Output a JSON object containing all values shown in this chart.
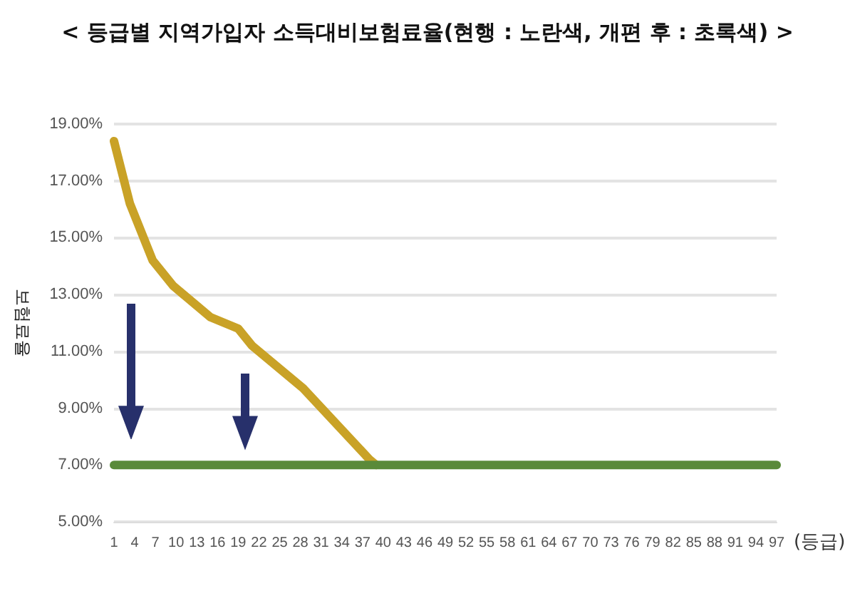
{
  "chart_data": {
    "type": "line",
    "title": "< 등급별 지역가입자 소득대비보험료율(현행 : 노란색, 개편 후 : 초록색) >",
    "xlabel": "(등급)",
    "ylabel": "보험료율",
    "xlim": [
      1,
      97
    ],
    "xticks": [
      1,
      4,
      7,
      10,
      13,
      16,
      19,
      22,
      25,
      28,
      31,
      34,
      37,
      40,
      43,
      46,
      49,
      52,
      55,
      58,
      61,
      64,
      67,
      70,
      73,
      76,
      79,
      82,
      85,
      88,
      91,
      94,
      97
    ],
    "ylim": [
      5,
      19
    ],
    "yticks": [
      {
        "value": 5,
        "label": "5.00%"
      },
      {
        "value": 7,
        "label": "7.00%"
      },
      {
        "value": 9,
        "label": "9.00%"
      },
      {
        "value": 11,
        "label": "11.00%"
      },
      {
        "value": 13,
        "label": "13.00%"
      },
      {
        "value": 15,
        "label": "15.00%"
      },
      {
        "value": 17,
        "label": "17.00%"
      },
      {
        "value": 19,
        "label": "19.00%"
      }
    ],
    "series": [
      {
        "color": "#c9a227",
        "x": [
          1,
          3.3,
          6.6,
          9.6,
          15,
          19,
          21,
          28.4,
          38,
          39
        ],
        "values": [
          18.4,
          16.2,
          14.2,
          13.3,
          12.2,
          11.8,
          11.2,
          9.7,
          7.2,
          7
        ]
      },
      {
        "color": "#5a8a3a",
        "x": [
          1,
          97
        ],
        "values": [
          7,
          7
        ]
      }
    ],
    "grid": "y",
    "marker": "none",
    "line_style": "solid"
  }
}
